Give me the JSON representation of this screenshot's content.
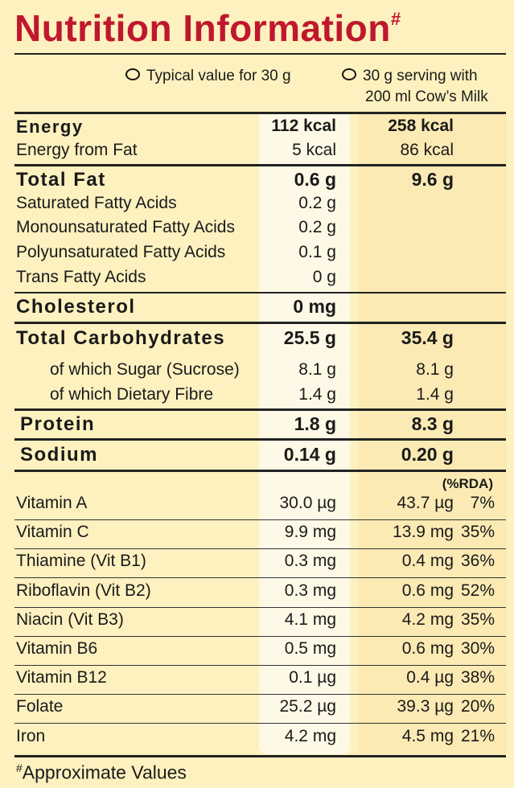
{
  "title": "Nutrition Information",
  "title_mark": "#",
  "legend": {
    "col1": "Typical value for 30 g",
    "col2_line1": "30 g serving with",
    "col2_line2": "200 ml Cow’s Milk"
  },
  "rows": {
    "energy": {
      "label": "Energy",
      "v1": "112 kcal",
      "v2": "258 kcal"
    },
    "energy_fat": {
      "label": "Energy from Fat",
      "v1": "5 kcal",
      "v2": "86 kcal"
    },
    "total_fat": {
      "label": "Total Fat",
      "v1": "0.6 g",
      "v2": "9.6 g"
    },
    "sat": {
      "label": "Saturated Fatty Acids",
      "v1": "0.2 g"
    },
    "mono": {
      "label": "Monounsaturated Fatty Acids",
      "v1": "0.2 g"
    },
    "poly": {
      "label": "Polyunsaturated Fatty Acids",
      "v1": "0.1 g"
    },
    "trans": {
      "label": "Trans Fatty Acids",
      "v1": "0 g"
    },
    "chol": {
      "label": "Cholesterol",
      "v1": "0 mg"
    },
    "carbs": {
      "label": "Total Carbohydrates",
      "v1": "25.5 g",
      "v2": "35.4 g"
    },
    "sugar": {
      "label": "of which Sugar (Sucrose)",
      "v1": "8.1 g",
      "v2": "8.1 g"
    },
    "fibre": {
      "label": "of which Dietary Fibre",
      "v1": "1.4 g",
      "v2": "1.4 g"
    },
    "protein": {
      "label": "Protein",
      "v1": "1.8 g",
      "v2": "8.3 g"
    },
    "sodium": {
      "label": "Sodium",
      "v1": "0.14 g",
      "v2": "0.20 g"
    }
  },
  "rda_header": "(%RDA)",
  "vitamins": [
    {
      "label": "Vitamin A",
      "v1": "30.0 µg",
      "v2": "43.7 µg",
      "rda": "7%"
    },
    {
      "label": "Vitamin C",
      "v1": "9.9 mg",
      "v2": "13.9 mg",
      "rda": "35%"
    },
    {
      "label": "Thiamine (Vit B1)",
      "v1": "0.3 mg",
      "v2": "0.4 mg",
      "rda": "36%"
    },
    {
      "label": "Riboflavin (Vit B2)",
      "v1": "0.3 mg",
      "v2": "0.6 mg",
      "rda": "52%"
    },
    {
      "label": "Niacin (Vit B3)",
      "v1": "4.1 mg",
      "v2": "4.2 mg",
      "rda": "35%"
    },
    {
      "label": "Vitamin B6",
      "v1": "0.5 mg",
      "v2": "0.6 mg",
      "rda": "30%"
    },
    {
      "label": "Vitamin B12",
      "v1": "0.1 µg",
      "v2": "0.4 µg",
      "rda": "38%"
    },
    {
      "label": "Folate",
      "v1": "25.2 µg",
      "v2": "39.3 µg",
      "rda": "20%"
    },
    {
      "label": "Iron",
      "v1": "4.2 mg",
      "v2": "4.5 mg",
      "rda": "21%"
    }
  ],
  "footnote_mark": "#",
  "footnote": "Approximate Values",
  "colors": {
    "title": "#c0172e",
    "background": "#fdf1bf",
    "col1_bg": "#fef9e6",
    "col2_bg": "#fbeab3"
  }
}
